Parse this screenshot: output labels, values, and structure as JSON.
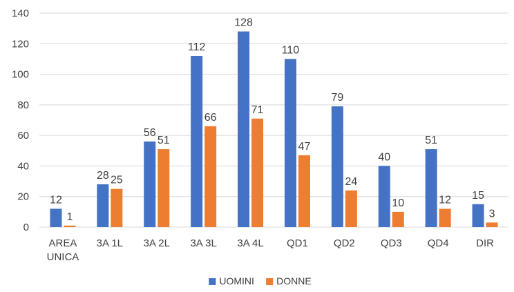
{
  "chart_data": {
    "type": "bar",
    "categories": [
      [
        "AREA",
        "UNICA"
      ],
      [
        "3A 1L"
      ],
      [
        "3A 2L"
      ],
      [
        "3A 3L"
      ],
      [
        "3A 4L"
      ],
      [
        "QD1"
      ],
      [
        "QD2"
      ],
      [
        "QD3"
      ],
      [
        "QD4"
      ],
      [
        "DIR"
      ]
    ],
    "series": [
      {
        "name": "UOMINI",
        "color": "#4472C4",
        "values": [
          12,
          28,
          56,
          112,
          128,
          110,
          79,
          40,
          51,
          15
        ]
      },
      {
        "name": "DONNE",
        "color": "#ED7D31",
        "values": [
          1,
          25,
          51,
          66,
          71,
          47,
          24,
          10,
          12,
          3
        ]
      }
    ],
    "ylim": [
      0,
      140
    ],
    "yticks": [
      0,
      20,
      40,
      60,
      80,
      100,
      120,
      140
    ],
    "grid": true,
    "legend_position": "bottom",
    "data_labels": true
  }
}
